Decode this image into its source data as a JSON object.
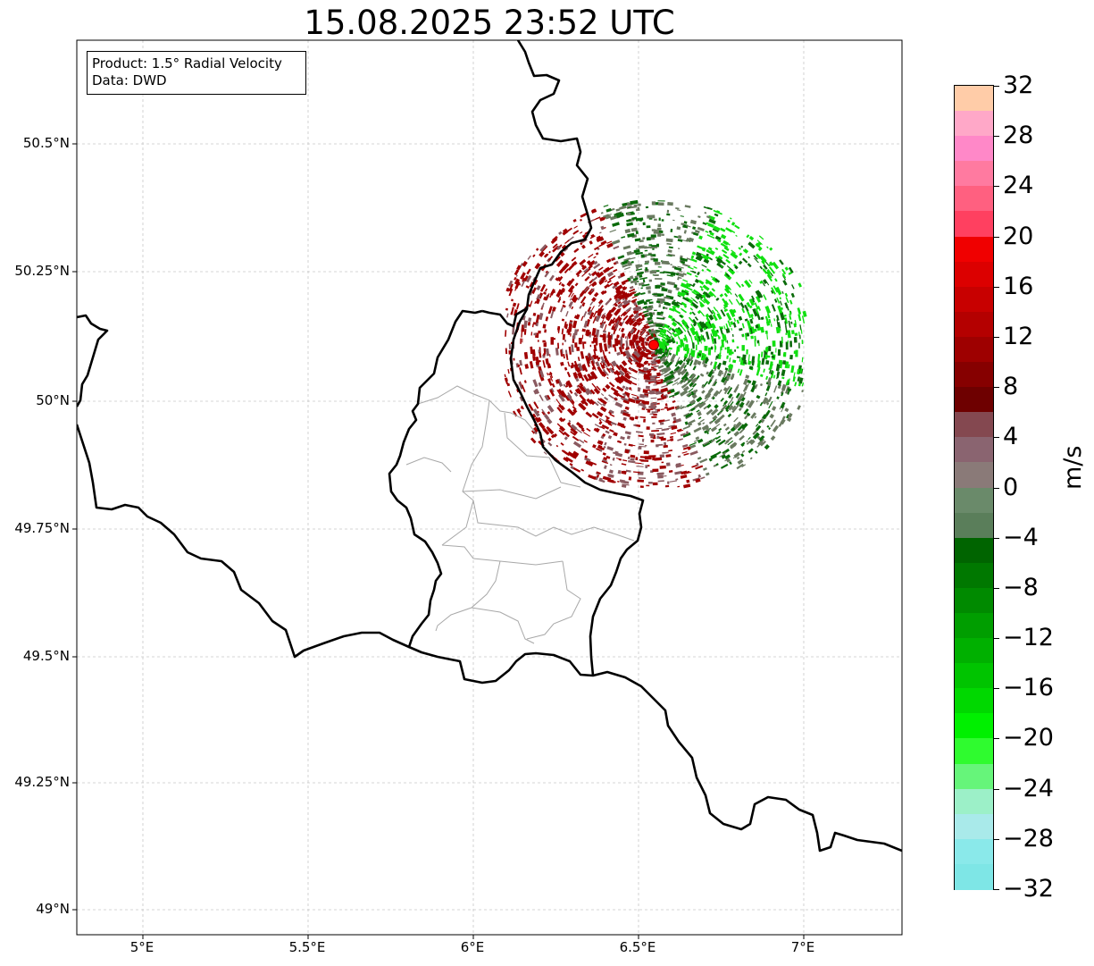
{
  "title": "15.08.2025 23:52 UTC",
  "info_box": {
    "product": "Product: 1.5° Radial Velocity",
    "source": "Data: DWD"
  },
  "map": {
    "lon_ticks": [
      "5°E",
      "5.5°E",
      "6°E",
      "6.5°E",
      "7°E"
    ],
    "lat_ticks": [
      "50.5°N",
      "50.25°N",
      "50°N",
      "49.75°N",
      "49.5°N",
      "49.25°N",
      "49°N"
    ],
    "gridlines": true,
    "radar_site_marker_color": "#ff0000",
    "border_color": "#000000",
    "district_border_color": "#a0a0a0"
  },
  "colorbar": {
    "label": "m/s",
    "min": -32,
    "max": 32,
    "tick_labels": [
      "32",
      "28",
      "24",
      "20",
      "16",
      "12",
      "8",
      "4",
      "0",
      "−4",
      "−8",
      "−12",
      "−16",
      "−20",
      "−24",
      "−28",
      "−32"
    ],
    "colors_bottom_to_top": [
      "#7ee6e6",
      "#8ae9ea",
      "#a9eaea",
      "#9cf0c8",
      "#66f57a",
      "#2ffb2f",
      "#00f000",
      "#00d800",
      "#00c400",
      "#00b000",
      "#009e00",
      "#008a00",
      "#007800",
      "#006400",
      "#5a7e5a",
      "#6a8a6a",
      "#8a7a78",
      "#8a6470",
      "#844850",
      "#6e0000",
      "#860000",
      "#9e0000",
      "#b40000",
      "#c80000",
      "#dc0000",
      "#f00000",
      "#ff4060",
      "#ff6080",
      "#ff7aa0",
      "#ff88c8",
      "#ffa8c8",
      "#ffcca8"
    ]
  },
  "legend_colors": {
    "dark_red": "#a00000",
    "dark_green": "#0a6a0a",
    "bright_green": "#10e010",
    "grey_green": "#6a7a60",
    "grey_red": "#8a5a60"
  }
}
